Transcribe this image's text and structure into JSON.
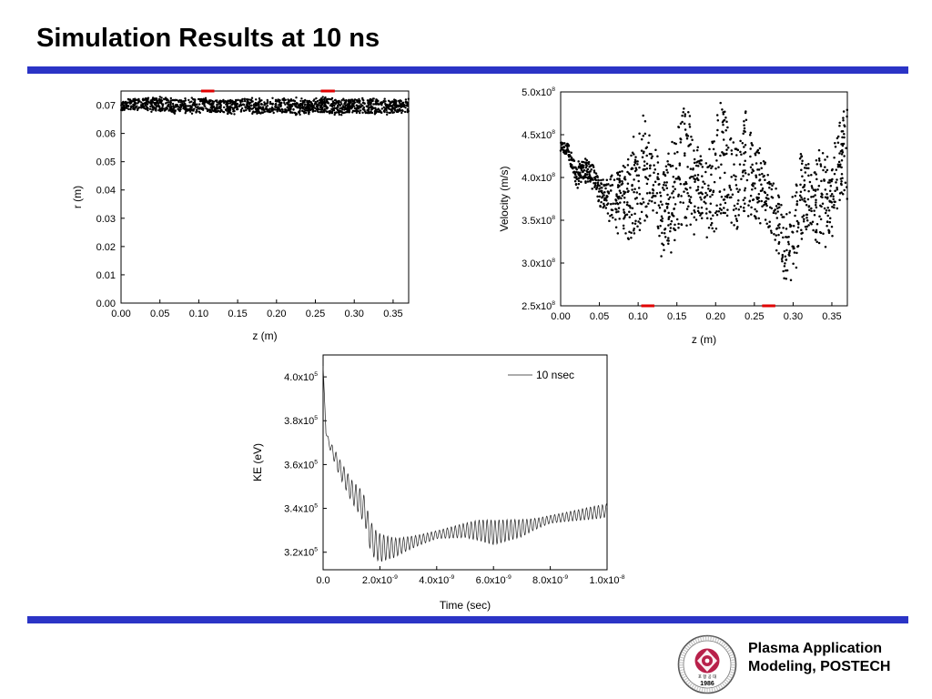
{
  "slide": {
    "title": "Simulation Results at 10 ns",
    "footer_line1": "Plasma Application",
    "footer_line2": "Modeling, POSTECH",
    "logo_year": "1986",
    "logo_motto": "포 항 공 대",
    "logo_ring_text": "POHANG UNIVERSITY OF SCIENCE AND TECHNOLOGY",
    "accent_color": "#2b34c6",
    "marker_color": "#e00000"
  },
  "chart_data": [
    {
      "id": "radius",
      "type": "scatter",
      "xlabel": "z (m)",
      "ylabel": "r (m)",
      "xlim": [
        0,
        0.37
      ],
      "ylim": [
        0,
        0.075
      ],
      "xticks": [
        0.0,
        0.05,
        0.1,
        0.15,
        0.2,
        0.25,
        0.3,
        0.35
      ],
      "xtick_labels": [
        "0.00",
        "0.05",
        "0.10",
        "0.15",
        "0.20",
        "0.25",
        "0.30",
        "0.35"
      ],
      "yticks": [
        0.0,
        0.01,
        0.02,
        0.03,
        0.04,
        0.05,
        0.06,
        0.07
      ],
      "ytick_labels": [
        "0.00",
        "0.01",
        "0.02",
        "0.03",
        "0.04",
        "0.05",
        "0.06",
        "0.07"
      ],
      "band_points": [
        [
          0.0,
          0.068,
          0.072
        ],
        [
          0.02,
          0.0685,
          0.0725
        ],
        [
          0.04,
          0.068,
          0.073
        ],
        [
          0.06,
          0.067,
          0.0725
        ],
        [
          0.08,
          0.0675,
          0.072
        ],
        [
          0.1,
          0.067,
          0.0725
        ],
        [
          0.12,
          0.0675,
          0.072
        ],
        [
          0.14,
          0.067,
          0.0722
        ],
        [
          0.16,
          0.0675,
          0.0725
        ],
        [
          0.18,
          0.0668,
          0.072
        ],
        [
          0.2,
          0.0675,
          0.0722
        ],
        [
          0.22,
          0.067,
          0.0725
        ],
        [
          0.24,
          0.0668,
          0.072
        ],
        [
          0.26,
          0.0672,
          0.0728
        ],
        [
          0.28,
          0.0668,
          0.072
        ],
        [
          0.3,
          0.0672,
          0.0722
        ],
        [
          0.32,
          0.0668,
          0.0725
        ],
        [
          0.34,
          0.067,
          0.072
        ],
        [
          0.37,
          0.0668,
          0.0722
        ]
      ],
      "markers": [
        {
          "x0": 0.103,
          "x1": 0.12,
          "at": "top"
        },
        {
          "x0": 0.257,
          "x1": 0.275,
          "at": "top"
        }
      ]
    },
    {
      "id": "velocity",
      "type": "scatter",
      "xlabel": "z (m)",
      "ylabel": "Velocity (m/s)",
      "xlim": [
        0,
        0.37
      ],
      "ylim": [
        250000000.0,
        500000000.0
      ],
      "xticks": [
        0.0,
        0.05,
        0.1,
        0.15,
        0.2,
        0.25,
        0.3,
        0.35
      ],
      "xtick_labels": [
        "0.00",
        "0.05",
        "0.10",
        "0.15",
        "0.20",
        "0.25",
        "0.30",
        "0.35"
      ],
      "yticks": [
        250000000.0,
        300000000.0,
        350000000.0,
        400000000.0,
        450000000.0,
        500000000.0
      ],
      "ytick_labels": [
        [
          "2.5x10",
          "8"
        ],
        [
          "3.0x10",
          "8"
        ],
        [
          "3.5x10",
          "8"
        ],
        [
          "4.0x10",
          "8"
        ],
        [
          "4.5x10",
          "8"
        ],
        [
          "5.0x10",
          "8"
        ]
      ],
      "band_points": [
        [
          0.0,
          430000000.0,
          442000000.0
        ],
        [
          0.01,
          425000000.0,
          440000000.0
        ],
        [
          0.02,
          385000000.0,
          415000000.0
        ],
        [
          0.03,
          395000000.0,
          422000000.0
        ],
        [
          0.04,
          390000000.0,
          420000000.0
        ],
        [
          0.05,
          365000000.0,
          400000000.0
        ],
        [
          0.06,
          355000000.0,
          395000000.0
        ],
        [
          0.07,
          345000000.0,
          410000000.0
        ],
        [
          0.08,
          330000000.0,
          420000000.0
        ],
        [
          0.09,
          320000000.0,
          435000000.0
        ],
        [
          0.1,
          340000000.0,
          460000000.0
        ],
        [
          0.11,
          340000000.0,
          470000000.0
        ],
        [
          0.12,
          350000000.0,
          440000000.0
        ],
        [
          0.13,
          300000000.0,
          410000000.0
        ],
        [
          0.14,
          315000000.0,
          430000000.0
        ],
        [
          0.15,
          330000000.0,
          460000000.0
        ],
        [
          0.16,
          340000000.0,
          495000000.0
        ],
        [
          0.17,
          335000000.0,
          455000000.0
        ],
        [
          0.18,
          350000000.0,
          430000000.0
        ],
        [
          0.19,
          330000000.0,
          440000000.0
        ],
        [
          0.2,
          345000000.0,
          470000000.0
        ],
        [
          0.21,
          350000000.0,
          490000000.0
        ],
        [
          0.22,
          355000000.0,
          460000000.0
        ],
        [
          0.23,
          340000000.0,
          440000000.0
        ],
        [
          0.24,
          360000000.0,
          480000000.0
        ],
        [
          0.25,
          345000000.0,
          440000000.0
        ],
        [
          0.26,
          350000000.0,
          430000000.0
        ],
        [
          0.27,
          330000000.0,
          410000000.0
        ],
        [
          0.28,
          310000000.0,
          390000000.0
        ],
        [
          0.29,
          270000000.0,
          360000000.0
        ],
        [
          0.3,
          285000000.0,
          375000000.0
        ],
        [
          0.31,
          320000000.0,
          435000000.0
        ],
        [
          0.32,
          335000000.0,
          415000000.0
        ],
        [
          0.33,
          330000000.0,
          425000000.0
        ],
        [
          0.34,
          320000000.0,
          440000000.0
        ],
        [
          0.35,
          335000000.0,
          415000000.0
        ],
        [
          0.36,
          370000000.0,
          470000000.0
        ],
        [
          0.37,
          380000000.0,
          495000000.0
        ]
      ],
      "markers": [
        {
          "x0": 0.104,
          "x1": 0.121,
          "at": "bottom"
        },
        {
          "x0": 0.26,
          "x1": 0.277,
          "at": "bottom"
        }
      ]
    },
    {
      "id": "kinetic",
      "type": "line",
      "xlabel": "Time (sec)",
      "ylabel": "KE (eV)",
      "xlim": [
        0,
        1e-08
      ],
      "ylim": [
        312000.0,
        410000.0
      ],
      "xticks": [
        0,
        2e-09,
        4e-09,
        6e-09,
        8e-09,
        1e-08
      ],
      "xtick_labels": [
        [
          "0.0",
          ""
        ],
        [
          "2.0x10",
          "-9"
        ],
        [
          "4.0x10",
          "-9"
        ],
        [
          "6.0x10",
          "-9"
        ],
        [
          "8.0x10",
          "-9"
        ],
        [
          "1.0x10",
          "-8"
        ]
      ],
      "yticks": [
        320000.0,
        340000.0,
        360000.0,
        380000.0,
        400000.0
      ],
      "ytick_labels": [
        [
          "3.2x10",
          "5"
        ],
        [
          "3.4x10",
          "5"
        ],
        [
          "3.6x10",
          "5"
        ],
        [
          "3.8x10",
          "5"
        ],
        [
          "4.0x10",
          "5"
        ]
      ],
      "series": [
        {
          "name": "10 nsec",
          "envelope_t": [
            0,
            1e-10,
            2e-10,
            4e-10,
            6e-10,
            8e-10,
            1e-09,
            1.3e-09,
            1.5e-09,
            1.6e-09,
            1.8e-09,
            2e-09,
            2.5e-09,
            3e-09,
            3.5e-09,
            4e-09,
            4.5e-09,
            5e-09,
            5.5e-09,
            6e-09,
            6.5e-09,
            7e-09,
            7.5e-09,
            8e-09,
            8.5e-09,
            9e-09,
            9.5e-09,
            1e-08
          ],
          "envelope_ke": [
            405000.0,
            375000.0,
            370000.0,
            364000.0,
            358000.0,
            353000.0,
            348000.0,
            343000.0,
            338000.0,
            330000.0,
            324000.0,
            322000.0,
            322000.0,
            324000.0,
            326000.0,
            328000.0,
            329000.0,
            330000.0,
            330000.0,
            329000.0,
            330000.0,
            331000.0,
            333000.0,
            335000.0,
            336000.0,
            337000.0,
            338000.0,
            339000.0
          ],
          "amplitude_t": [
            0,
            2e-10,
            5e-10,
            1e-09,
            1.5e-09,
            2e-09,
            3e-09,
            4e-09,
            5e-09,
            6e-09,
            7e-09,
            8e-09,
            9e-09,
            1e-08
          ],
          "amplitude_ke": [
            0,
            2000.0,
            4000.0,
            5000.0,
            7000.0,
            8000.0,
            6000.0,
            3000.0,
            3500.0,
            6000.0,
            6500.0,
            3500.0,
            3000.0,
            3000.0
          ],
          "period_sec": 1.4e-10
        }
      ],
      "legend": "top-right"
    }
  ]
}
